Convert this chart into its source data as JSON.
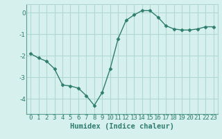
{
  "x": [
    0,
    1,
    2,
    3,
    4,
    5,
    6,
    7,
    8,
    9,
    10,
    11,
    12,
    13,
    14,
    15,
    16,
    17,
    18,
    19,
    20,
    21,
    22,
    23
  ],
  "y": [
    -1.9,
    -2.1,
    -2.25,
    -2.6,
    -3.35,
    -3.4,
    -3.5,
    -3.85,
    -4.3,
    -3.7,
    -2.6,
    -1.2,
    -0.35,
    -0.1,
    0.1,
    0.1,
    -0.2,
    -0.6,
    -0.75,
    -0.8,
    -0.8,
    -0.75,
    -0.65,
    -0.65
  ],
  "line_color": "#2e7d6e",
  "marker": "D",
  "marker_size": 2.5,
  "bg_color": "#d6f0ee",
  "grid_color": "#b0d8d3",
  "xlabel": "Humidex (Indice chaleur)",
  "xlim": [
    -0.5,
    23.5
  ],
  "ylim": [
    -4.7,
    0.4
  ],
  "yticks": [
    0,
    -1,
    -2,
    -3,
    -4
  ],
  "xtick_labels": [
    "0",
    "1",
    "2",
    "3",
    "4",
    "5",
    "6",
    "7",
    "8",
    "9",
    "10",
    "11",
    "12",
    "13",
    "14",
    "15",
    "16",
    "17",
    "18",
    "19",
    "20",
    "21",
    "22",
    "23"
  ],
  "xlabel_fontsize": 7.5,
  "tick_fontsize": 6.5,
  "line_width": 1.0
}
